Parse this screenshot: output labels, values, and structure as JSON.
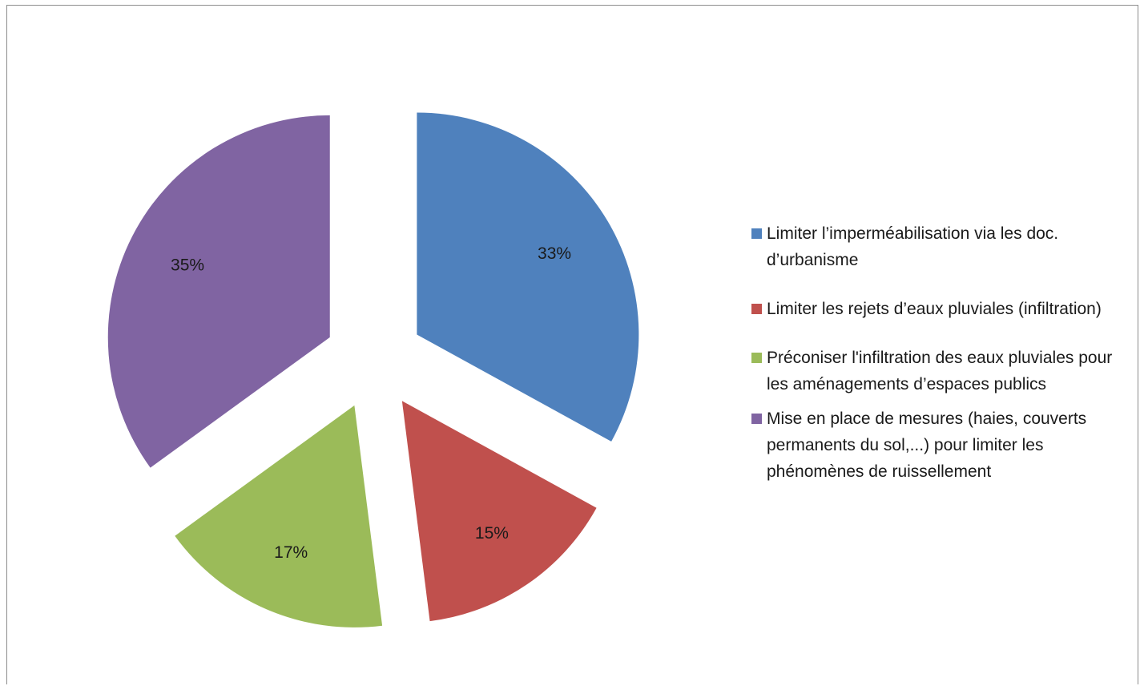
{
  "chart_data": {
    "type": "pie",
    "exploded": true,
    "start_angle_deg": 0,
    "direction": "clockwise",
    "legend_position": "right",
    "slices": [
      {
        "label": "Limiter  l’imperméabilisation via les doc. d’urbanisme",
        "value": 33,
        "value_label": "33%",
        "color": "#4f81bd"
      },
      {
        "label": " Limiter les rejets d’eaux pluviales (infiltration)",
        "value": 15,
        "value_label": "15%",
        "color": "#c0504d"
      },
      {
        "label": " Préconiser l'infiltration des eaux pluviales pour les aménagements d’espaces publics",
        "value": 17,
        "value_label": "17%",
        "color": "#9bbb59"
      },
      {
        "label": "Mise en place de mesures (haies, couverts permanents du sol,...) pour limiter les phénomènes de ruissellement",
        "value": 35,
        "value_label": "35%",
        "color": "#8064a2"
      }
    ]
  }
}
